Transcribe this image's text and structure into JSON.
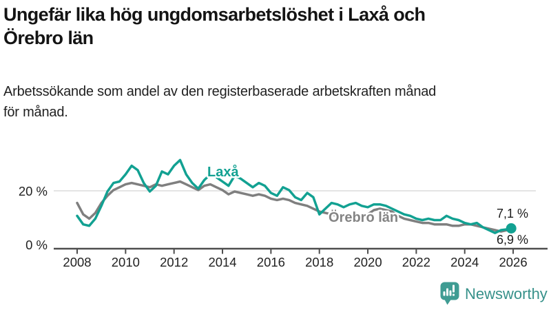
{
  "header": {
    "title_line1": "Ungefär lika hög ungdomsarbetslöshet i Laxå och",
    "title_line2": "Örebro län",
    "subtitle_line1": "Arbetssökande som andel av den registerbaserade arbetskraften månad",
    "subtitle_line2": "för månad."
  },
  "chart_data": {
    "type": "line",
    "title": "Ungefär lika hög ungdomsarbetslöshet i Laxå och Örebro län",
    "subtitle": "Arbetssökande som andel av den registerbaserade arbetskraften månad för månad.",
    "xlabel": "",
    "ylabel": "",
    "unit": "%",
    "xlim": [
      2007.8,
      2026.5
    ],
    "ylim": [
      0,
      40
    ],
    "grid": "single horizontal gridline at 20 %",
    "legend": "inline series labels",
    "x_ticks": [
      2008,
      2010,
      2012,
      2014,
      2016,
      2018,
      2020,
      2022,
      2024,
      2026
    ],
    "y_ticks": [
      {
        "value": 0,
        "label": "0 %"
      },
      {
        "value": 20,
        "label": "20 %"
      }
    ],
    "x": [
      2008,
      2008.25,
      2008.5,
      2008.75,
      2009,
      2009.25,
      2009.5,
      2009.75,
      2010,
      2010.25,
      2010.5,
      2010.75,
      2011,
      2011.25,
      2011.5,
      2011.75,
      2012,
      2012.25,
      2012.5,
      2012.75,
      2013,
      2013.25,
      2013.5,
      2013.75,
      2014,
      2014.25,
      2014.5,
      2014.75,
      2015,
      2015.25,
      2015.5,
      2015.75,
      2016,
      2016.25,
      2016.5,
      2016.75,
      2017,
      2017.25,
      2017.5,
      2017.75,
      2018,
      2018.25,
      2018.5,
      2018.75,
      2019,
      2019.25,
      2019.5,
      2019.75,
      2020,
      2020.25,
      2020.5,
      2020.75,
      2021,
      2021.25,
      2021.5,
      2021.75,
      2022,
      2022.25,
      2022.5,
      2022.75,
      2023,
      2023.25,
      2023.5,
      2023.75,
      2024,
      2024.25,
      2024.5,
      2024.75,
      2025,
      2025.25,
      2025.5,
      2025.75,
      2025.92
    ],
    "series": [
      {
        "id": "laxa",
        "name": "Laxå",
        "color": "#12a192",
        "end_label": "7,1 %",
        "end_value": 7.1,
        "values": [
          11.5,
          8.5,
          8,
          10.5,
          15,
          20,
          23,
          23.5,
          26,
          29,
          27.5,
          23,
          20,
          22,
          27,
          26,
          29,
          31,
          26,
          23,
          21,
          24,
          26,
          25,
          23.5,
          22,
          25.5,
          24.5,
          23,
          21.5,
          23,
          22,
          19.5,
          18.5,
          21.5,
          20.5,
          18,
          17,
          19.5,
          18,
          12,
          14,
          16,
          15.5,
          14.5,
          15.5,
          16,
          15,
          14.5,
          15.5,
          15.5,
          15,
          14,
          13,
          12,
          11.5,
          10.5,
          10,
          10.5,
          10,
          10,
          11.5,
          10.5,
          10,
          9,
          8.5,
          9,
          7.5,
          6.5,
          5.5,
          6.5,
          6.8,
          7.1
        ]
      },
      {
        "id": "orebro-lan",
        "name": "Örebro län",
        "color": "#7f7f7f",
        "label_color": "#848484",
        "end_label": "6,9 %",
        "end_value": 6.9,
        "values": [
          16,
          12,
          10.5,
          12.5,
          16,
          18.5,
          20.5,
          21.5,
          22.5,
          23,
          22.5,
          22,
          21.5,
          22.5,
          22,
          22.5,
          23,
          23.5,
          22.5,
          21.5,
          20.5,
          22,
          22.5,
          21.5,
          20.5,
          19,
          20,
          19.5,
          19,
          18.5,
          19,
          18.5,
          17.5,
          17,
          17.5,
          17,
          16,
          15.5,
          15,
          14,
          13,
          12.5,
          12,
          11.5,
          11.5,
          12,
          12,
          11.5,
          12,
          13.5,
          14,
          13.5,
          13,
          11.5,
          10.5,
          10,
          9.5,
          9,
          9,
          8.5,
          8.5,
          8.5,
          8,
          8,
          8.5,
          8.5,
          8,
          7.5,
          7,
          6.5,
          6,
          6.5,
          6.9
        ]
      }
    ]
  },
  "footer": {
    "brand": "Newsworthy",
    "logo_icon": "bar-chart-speech-bubble-icon",
    "brand_color": "#37918a",
    "logo_fill": "#3f9c93"
  }
}
